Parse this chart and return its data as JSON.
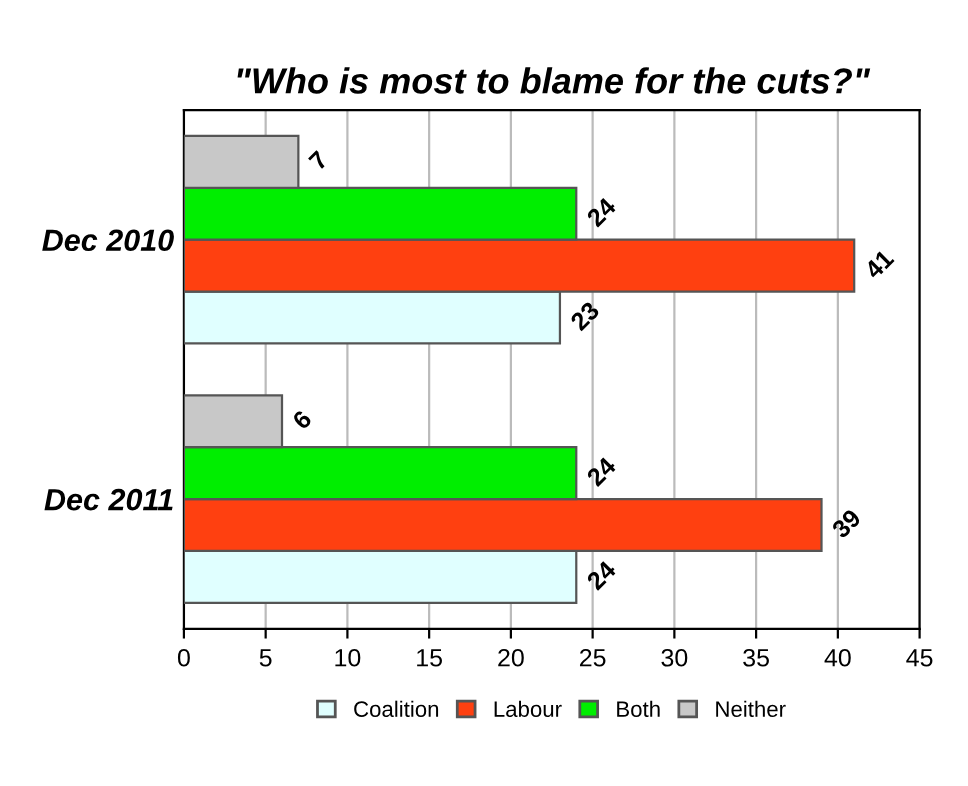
{
  "chart_data": {
    "type": "bar",
    "orientation": "horizontal",
    "title": "\"Who is most to blame for the cuts?\"",
    "categories": [
      "Dec 2010",
      "Dec 2011"
    ],
    "series": [
      {
        "name": "Coalition",
        "color": "#e0ffff",
        "values": [
          23,
          24
        ]
      },
      {
        "name": "Labour",
        "color": "#ff4010",
        "values": [
          41,
          39
        ]
      },
      {
        "name": "Both",
        "color": "#00ee00",
        "values": [
          24,
          24
        ]
      },
      {
        "name": "Neither",
        "color": "#c8c8c8",
        "values": [
          7,
          6
        ]
      }
    ],
    "xlim": [
      0,
      45
    ],
    "xticks": [
      0,
      5,
      10,
      15,
      20,
      25,
      30,
      35,
      40,
      45
    ],
    "grid": "x",
    "legend": "bottom",
    "data_labels": true
  }
}
